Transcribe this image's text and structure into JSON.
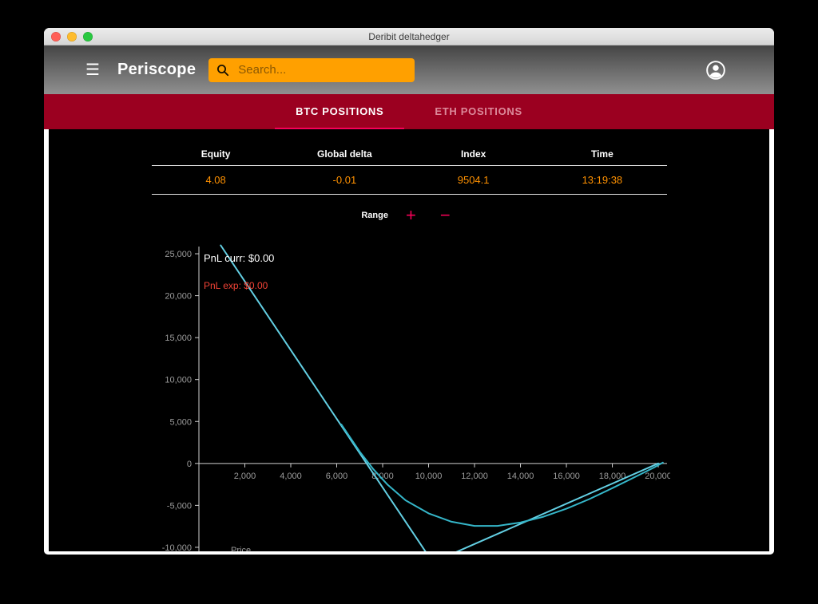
{
  "window": {
    "title": "Deribit deltahedger"
  },
  "toolbar": {
    "app_name": "Periscope",
    "menu_icon": "☰",
    "search_placeholder": "Search..."
  },
  "tabs": [
    {
      "label": "BTC POSITIONS",
      "active": true
    },
    {
      "label": "ETH POSITIONS",
      "active": false
    }
  ],
  "stats": {
    "headers": [
      "Equity",
      "Global delta",
      "Index",
      "Time"
    ],
    "values": [
      "4.08",
      "-0.01",
      "9504.1",
      "13:19:38"
    ]
  },
  "range": {
    "label": "Range",
    "plus_icon": "+",
    "minus_icon": "−"
  },
  "chart": {
    "legend_curr": "PnL curr: $0.00",
    "legend_exp": "PnL exp: $0.00"
  },
  "theme": {
    "accent": "#F50057",
    "tab_bg": "#9B0020",
    "search_bg": "#FFA000",
    "value_color": "#FF9100",
    "exp_label_color": "#F44336",
    "tick_color": "#9C9C9C"
  },
  "chart_data": {
    "type": "line",
    "title": "",
    "xlabel": "Price",
    "ylabel": "",
    "grid": false,
    "legend_position": "top-left",
    "xlim": [
      0,
      20520
    ],
    "ylim": [
      -12100,
      26430
    ],
    "x_ticks": [
      2000,
      4000,
      6000,
      8000,
      10000,
      12000,
      14000,
      16000,
      18000,
      20000
    ],
    "y_ticks": [
      25000,
      20000,
      15000,
      10000,
      5000,
      0,
      -5000,
      -10000
    ],
    "axis_color": "#CFCFCF",
    "annotations": [
      "PnL curr: $0.00",
      "PnL exp: $0.00"
    ],
    "series": [
      {
        "name": "PnL exp",
        "color": "#63CFE3",
        "points": [
          [
            950,
            26000
          ],
          [
            10180,
            -11800
          ],
          [
            20000,
            0
          ]
        ]
      },
      {
        "name": "PnL curr",
        "color": "#35B6C9",
        "points": [
          [
            6200,
            4650
          ],
          [
            7000,
            1400
          ],
          [
            7600,
            -700
          ],
          [
            8200,
            -2500
          ],
          [
            9000,
            -4400
          ],
          [
            10000,
            -5950
          ],
          [
            11000,
            -6950
          ],
          [
            12000,
            -7450
          ],
          [
            13000,
            -7450
          ],
          [
            14000,
            -7050
          ],
          [
            15000,
            -6350
          ],
          [
            16000,
            -5400
          ],
          [
            17000,
            -4250
          ],
          [
            18000,
            -2950
          ],
          [
            19000,
            -1600
          ],
          [
            19800,
            -500
          ],
          [
            20200,
            100
          ]
        ]
      }
    ]
  }
}
